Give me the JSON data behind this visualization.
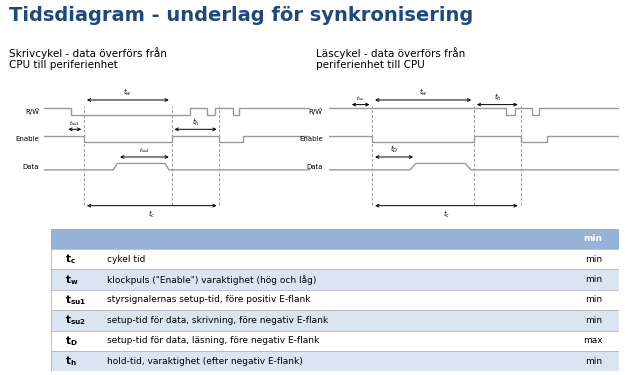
{
  "title": "Tidsdiagram - underlag för synkronisering",
  "title_color": "#1F497D",
  "left_subtitle": "Skrivcykel - data överförs från\nCPU till periferienhet",
  "right_subtitle": "Läscykel - data överförs från\nperiferienhet till CPU",
  "bg_color": "#ffffff",
  "signal_color": "#999999",
  "table_header_bg": "#95B3D7",
  "table_row_bg": "#ffffff",
  "table_alt_bg": "#DBE5F1",
  "table_border": "#AAAAAA",
  "table_header_text": "min",
  "table_rows": [
    [
      "t_c",
      "cykel tid",
      "min"
    ],
    [
      "t_w",
      "klockpuls (\"Enable\") varaktighet (hög och låg)",
      "min"
    ],
    [
      "t_su1",
      "styrsignalernas setup-tid, före positiv E-flank",
      "min"
    ],
    [
      "t_su2",
      "setup-tid för data, skrivning, före negativ E-flank",
      "min"
    ],
    [
      "t_D",
      "setup-tid för data, läsning, före negativ E-flank",
      "max"
    ],
    [
      "t_h",
      "hold-tid, varaktighet (efter negativ E-flank)",
      "min"
    ]
  ],
  "font_color": "#000000"
}
